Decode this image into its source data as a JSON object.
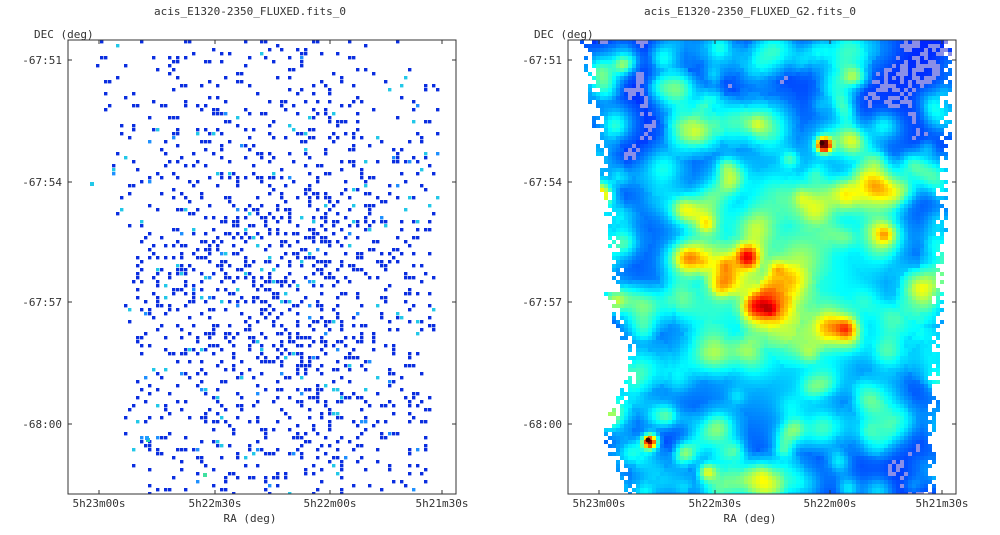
{
  "panels": [
    {
      "title": "acis_E1320-2350_FLUXED.fits_0",
      "y_axis_label": "DEC (deg)",
      "x_axis_label": "RA (deg)",
      "rendering": "binned-counts",
      "colormap": "blue-to-red",
      "chart_data": {
        "type": "heatmap",
        "title": "acis_E1320-2350_FLUXED.fits_0",
        "xlabel": "RA (deg)",
        "ylabel": "DEC (deg)",
        "x_ticks": [
          "5h23m00s",
          "5h22m30s",
          "5h22m00s",
          "5h21m30s"
        ],
        "y_ticks": [
          "-67:51",
          "-67:54",
          "-67:57",
          "-68:00"
        ],
        "grid": false
      }
    },
    {
      "title": "acis_E1320-2350_FLUXED_G2.fits_0",
      "y_axis_label": "DEC (deg)",
      "x_axis_label": "RA (deg)",
      "rendering": "gaussian-smoothed",
      "colormap": "blue-to-red",
      "chart_data": {
        "type": "heatmap",
        "title": "acis_E1320-2350_FLUXED_G2.fits_0",
        "xlabel": "RA (deg)",
        "ylabel": "DEC (deg)",
        "x_ticks": [
          "5h23m00s",
          "5h22m30s",
          "5h22m00s",
          "5h21m30s"
        ],
        "y_ticks": [
          "-67:51",
          "-67:54",
          "-67:57",
          "-68:00"
        ],
        "grid": false
      }
    }
  ]
}
